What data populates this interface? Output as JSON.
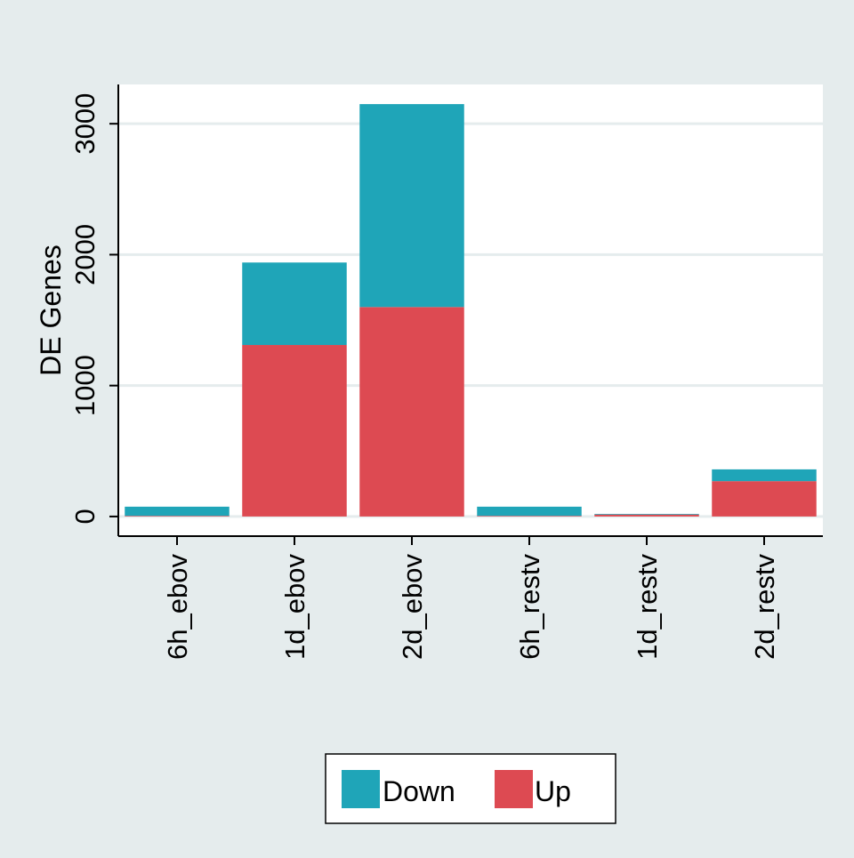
{
  "chart_data": {
    "type": "bar",
    "stacked": true,
    "title": "",
    "xlabel": "",
    "ylabel": "DE Genes",
    "categories": [
      "6h_ebov",
      "1d_ebov",
      "2d_ebov",
      "6h_restv",
      "1d_restv",
      "2d_restv"
    ],
    "series": [
      {
        "name": "Up",
        "values": [
          5,
          1310,
          1600,
          5,
          15,
          270
        ]
      },
      {
        "name": "Down",
        "values": [
          70,
          630,
          1550,
          70,
          5,
          90
        ]
      }
    ],
    "ylim": [
      -150,
      3300
    ],
    "yticks": [
      0,
      1000,
      2000,
      3000
    ],
    "grid": true,
    "legend": {
      "position": "bottom-center",
      "order": [
        "Down",
        "Up"
      ]
    },
    "colors": {
      "Down": "#1fa5b8",
      "Up": "#dd4a52",
      "plot_background": "#ffffff",
      "page_background": "#e5eced",
      "grid": "#e5eced"
    }
  }
}
